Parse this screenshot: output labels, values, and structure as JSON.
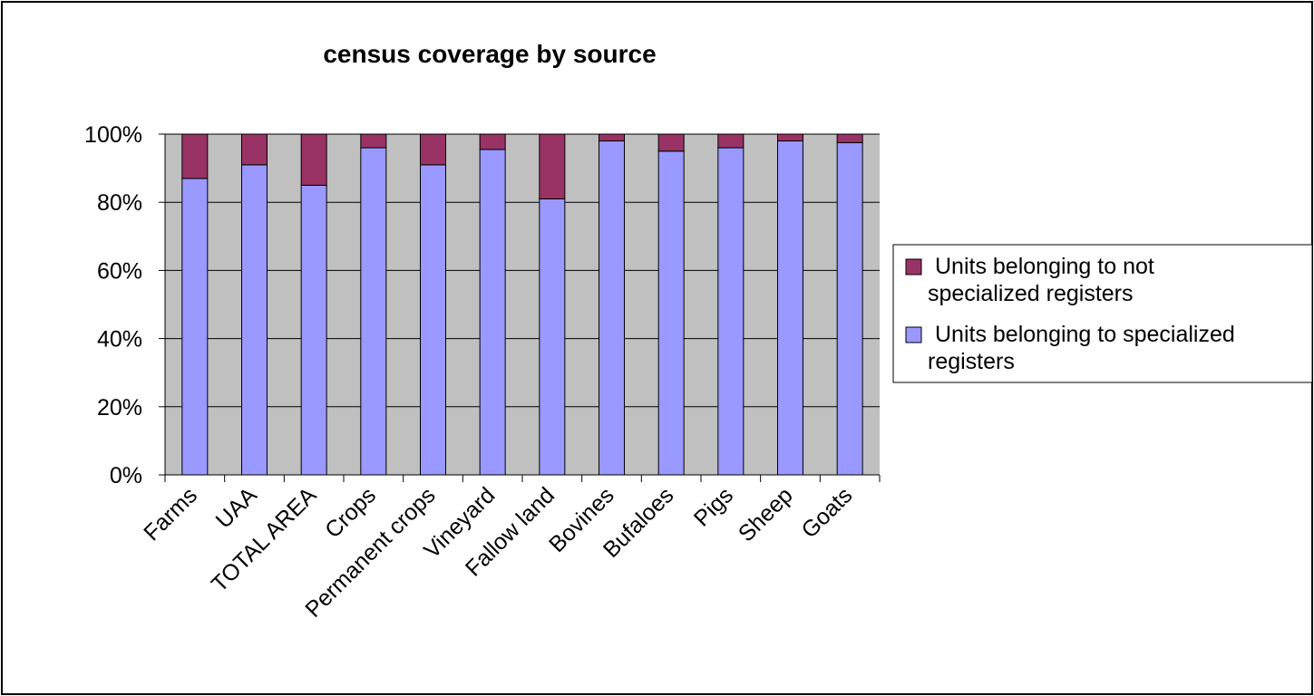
{
  "chart_data": {
    "type": "bar",
    "stacked": true,
    "percent_stacked": true,
    "title": "census coverage by source",
    "xlabel": "",
    "ylabel": "",
    "ylim": [
      0,
      100
    ],
    "y_ticks": [
      "0%",
      "20%",
      "40%",
      "60%",
      "80%",
      "100%"
    ],
    "categories": [
      "Farms",
      "UAA",
      "TOTAL AREA",
      "Crops",
      "Permanent crops",
      "Vineyard",
      "Fallow land",
      "Bovines",
      "Bufaloes",
      "Pigs",
      "Sheep",
      "Goats"
    ],
    "series": [
      {
        "name": "Units belonging to specialized registers",
        "color": "#9999ff",
        "values": [
          87,
          91,
          85,
          96,
          91,
          95.5,
          81,
          98,
          95,
          96,
          98,
          97.5
        ]
      },
      {
        "name": "Units belonging to not specialized registers",
        "color": "#993366",
        "values": [
          13,
          9,
          15,
          4,
          9,
          4.5,
          19,
          2,
          5,
          4,
          2,
          2.5
        ]
      }
    ],
    "legend": {
      "position": "right",
      "entries": [
        {
          "series": 1,
          "lines": [
            "Units belonging to not",
            "specialized registers"
          ]
        },
        {
          "series": 0,
          "lines": [
            "Units belonging to specialized",
            "registers"
          ]
        }
      ]
    },
    "plot_background": "#c0c0c0",
    "grid": true
  }
}
